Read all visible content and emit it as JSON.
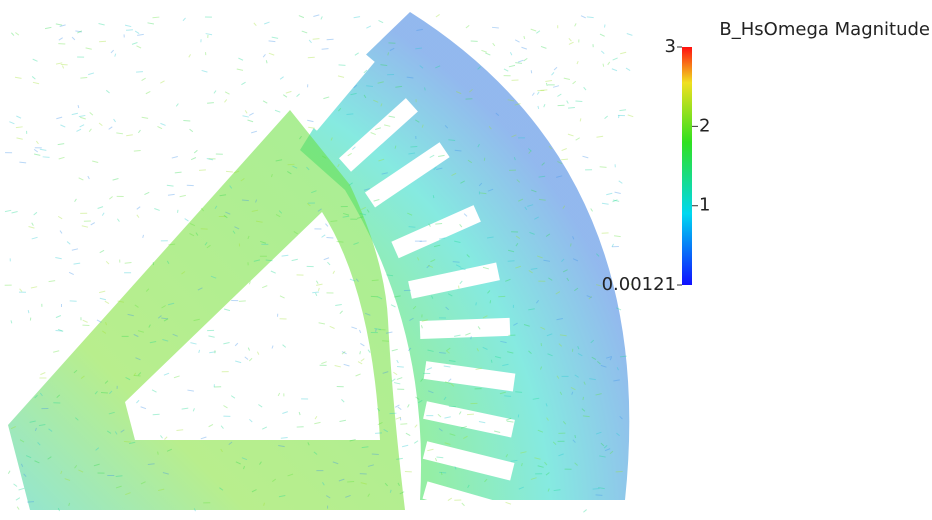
{
  "colorbar": {
    "title": "B_HsOmega Magnitude",
    "range": [
      0.00121,
      3
    ],
    "ticks": [
      1,
      2
    ]
  }
}
